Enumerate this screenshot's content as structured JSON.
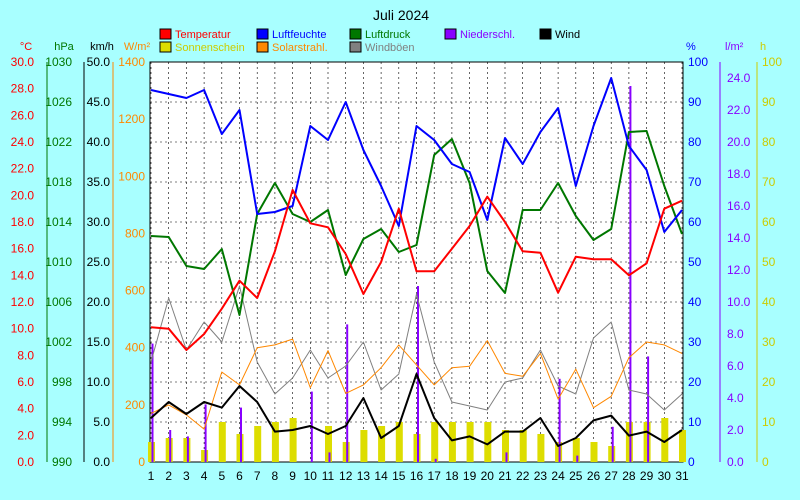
{
  "chart_data": {
    "type": "line",
    "title": "Juli 2024",
    "x": [
      1,
      2,
      3,
      4,
      5,
      6,
      7,
      8,
      9,
      10,
      11,
      12,
      13,
      14,
      15,
      16,
      17,
      18,
      19,
      20,
      21,
      22,
      23,
      24,
      25,
      26,
      27,
      28,
      29,
      30,
      31
    ],
    "axes": {
      "temp": {
        "label": "°C",
        "color": "#ff0000",
        "min": 0,
        "max": 30,
        "ticks": [
          "0.0",
          "2.0",
          "4.0",
          "6.0",
          "8.0",
          "10.0",
          "12.0",
          "14.0",
          "16.0",
          "18.0",
          "20.0",
          "22.0",
          "24.0",
          "26.0",
          "28.0",
          "30.0"
        ]
      },
      "hpa": {
        "label": "hPa",
        "color": "#007700",
        "min": 990,
        "max": 1030,
        "ticks": [
          "990",
          "994",
          "998",
          "1002",
          "1006",
          "1010",
          "1014",
          "1018",
          "1022",
          "1026",
          "1030"
        ]
      },
      "kmh": {
        "label": "km/h",
        "color": "#000000",
        "min": 0,
        "max": 50,
        "ticks": [
          "0.0",
          "5.0",
          "10.0",
          "15.0",
          "20.0",
          "25.0",
          "30.0",
          "35.0",
          "40.0",
          "45.0",
          "50.0"
        ]
      },
      "wm2": {
        "label": "W/m²",
        "color": "#ff8800",
        "min": 0,
        "max": 1400,
        "ticks": [
          "0",
          "200",
          "400",
          "600",
          "800",
          "1000",
          "1200",
          "1400"
        ]
      },
      "pct": {
        "label": "%",
        "color": "#0000ff",
        "min": 0,
        "max": 100,
        "ticks": [
          "0",
          "10",
          "20",
          "30",
          "40",
          "50",
          "60",
          "70",
          "80",
          "90",
          "100"
        ]
      },
      "lm2": {
        "label": "l/m²",
        "color": "#8800ff",
        "min": 0,
        "max": 25,
        "ticks": [
          "0.0",
          "2.0",
          "4.0",
          "6.0",
          "8.0",
          "10.0",
          "12.0",
          "14.0",
          "16.0",
          "18.0",
          "20.0",
          "22.0",
          "24.0"
        ]
      },
      "h": {
        "label": "h",
        "color": "#cccc00",
        "min": 0,
        "max": 100,
        "ticks": [
          "0",
          "10",
          "20",
          "30",
          "40",
          "50",
          "60",
          "70",
          "80",
          "90",
          "100"
        ]
      }
    },
    "legend": [
      {
        "name": "Temperatur",
        "color": "#ff0000"
      },
      {
        "name": "Luftfeuchte",
        "color": "#0000ff"
      },
      {
        "name": "Luftdruck",
        "color": "#007700"
      },
      {
        "name": "Niederschl.",
        "color": "#8800ff"
      },
      {
        "name": "Wind",
        "color": "#000000"
      },
      {
        "name": "Sonnenschein",
        "color": "#dddd00"
      },
      {
        "name": "Solarstrahl.",
        "color": "#ff8800"
      },
      {
        "name": "Windböen",
        "color": "#808080"
      }
    ],
    "series": [
      {
        "name": "Temperatur",
        "axis": "temp",
        "color": "#ff0000",
        "values": [
          10.1,
          10.0,
          8.4,
          9.6,
          11.5,
          13.6,
          12.3,
          15.8,
          20.4,
          17.9,
          17.6,
          15.6,
          12.6,
          15.0,
          19.0,
          14.3,
          14.3,
          16.0,
          17.7,
          19.9,
          18.0,
          15.8,
          15.7,
          12.7,
          15.4,
          15.2,
          15.2,
          14.0,
          14.9,
          19.0,
          19.6
        ]
      },
      {
        "name": "Luftfeuchte",
        "axis": "pct",
        "color": "#0000ff",
        "values": [
          93,
          92,
          91,
          93,
          82,
          88,
          62,
          62.5,
          64,
          84,
          80.5,
          90,
          78,
          69,
          59,
          84,
          80.5,
          74.5,
          72.5,
          60.5,
          81,
          74.5,
          82.5,
          88.5,
          69,
          84,
          96,
          79,
          73,
          57.5,
          63
        ]
      },
      {
        "name": "Luftdruck",
        "axis": "hpa",
        "color": "#007700",
        "values": [
          1012.6,
          1012.5,
          1009.6,
          1009.3,
          1011.3,
          1004.7,
          1014.8,
          1017.9,
          1014.8,
          1014.0,
          1015.2,
          1008.7,
          1012.3,
          1013.3,
          1011.0,
          1011.7,
          1020.7,
          1022.3,
          1017.9,
          1009.1,
          1006.9,
          1015.2,
          1015.2,
          1017.9,
          1014.6,
          1012.2,
          1013.3,
          1023.0,
          1023.1,
          1017.6,
          1012.8
        ]
      },
      {
        "name": "Wind",
        "axis": "kmh",
        "color": "#000000",
        "values": [
          5.5,
          7.5,
          6.0,
          7.5,
          6.8,
          9.5,
          7.5,
          3.8,
          4.0,
          4.5,
          3.5,
          4.5,
          8.0,
          3.0,
          4.5,
          11.0,
          5.5,
          2.7,
          3.2,
          2.2,
          3.8,
          3.8,
          5.5,
          2.0,
          3.0,
          5.2,
          5.8,
          3.3,
          3.8,
          2.5,
          4.0
        ]
      },
      {
        "name": "Windböen",
        "axis": "kmh",
        "color": "#808080",
        "values": [
          12.5,
          20.5,
          14.0,
          17.5,
          15.0,
          22.0,
          12.5,
          8.5,
          10.5,
          14.0,
          10.5,
          12.0,
          15.0,
          9.0,
          11.0,
          21.0,
          12.5,
          7.5,
          7.0,
          6.5,
          10.0,
          10.5,
          14.0,
          9.5,
          8.5,
          15.5,
          17.5,
          9.0,
          8.5,
          6.5,
          8.5
        ]
      },
      {
        "name": "Solarstrahl.",
        "axis": "wm2",
        "color": "#ff8800",
        "values": [
          170,
          200,
          165,
          115,
          315,
          270,
          400,
          410,
          430,
          260,
          390,
          240,
          270,
          330,
          410,
          340,
          270,
          330,
          335,
          425,
          310,
          300,
          380,
          220,
          325,
          190,
          230,
          365,
          420,
          410,
          380
        ]
      },
      {
        "name": "Sonnenschein",
        "axis": "h",
        "color": "#dddd00",
        "type": "bar",
        "values": [
          5,
          6,
          6,
          3,
          10,
          7,
          9,
          10,
          11,
          0,
          9,
          5,
          8,
          9,
          10,
          7,
          10,
          10,
          10,
          10,
          8,
          8,
          7,
          5,
          6,
          5,
          4,
          10,
          10,
          11,
          8
        ]
      },
      {
        "name": "Niederschl.",
        "axis": "lm2",
        "color": "#8800ff",
        "type": "bar",
        "values": [
          7.4,
          2.0,
          1.6,
          3.6,
          0,
          3.4,
          0,
          0,
          0,
          4.4,
          0.6,
          8.6,
          0,
          0,
          0,
          11.0,
          0.2,
          0,
          0,
          0,
          0.6,
          0,
          0,
          5.2,
          0.4,
          0,
          2.2,
          23.5,
          6.6,
          0,
          0
        ]
      }
    ],
    "grid": true
  }
}
